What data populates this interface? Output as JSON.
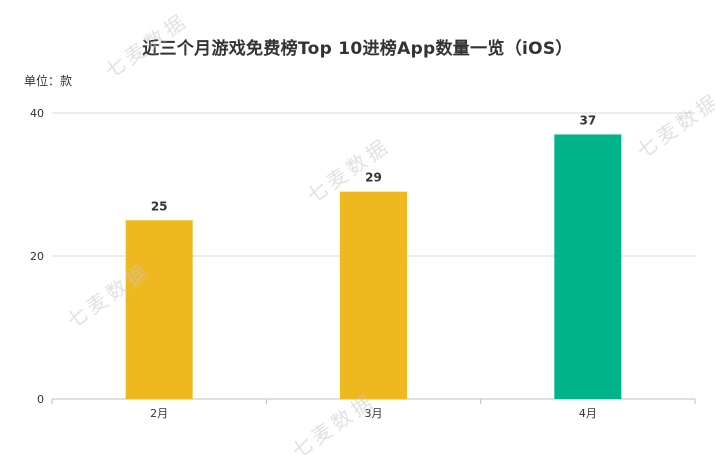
{
  "title": "近三个月游戏免费榜Top 10进榜App数量一览（iOS）",
  "unit_label": "单位：款",
  "watermark": "七麦数据",
  "colors": {
    "bar_default": "#EEB81E",
    "bar_highlight": "#00B38A",
    "grid": "#D9D9D9",
    "axis": "#BFBFBF",
    "text": "#333333"
  },
  "chart_data": {
    "type": "bar",
    "categories": [
      "2月",
      "3月",
      "4月"
    ],
    "values": [
      25,
      29,
      37
    ],
    "highlight_index": 2,
    "title": "近三个月游戏免费榜Top 10进榜App数量一览（iOS）",
    "xlabel": "",
    "ylabel": "单位：款",
    "ylim": [
      0,
      40
    ],
    "yticks": [
      0,
      20,
      40
    ],
    "grid": true,
    "legend": "none",
    "data_labels": true
  }
}
